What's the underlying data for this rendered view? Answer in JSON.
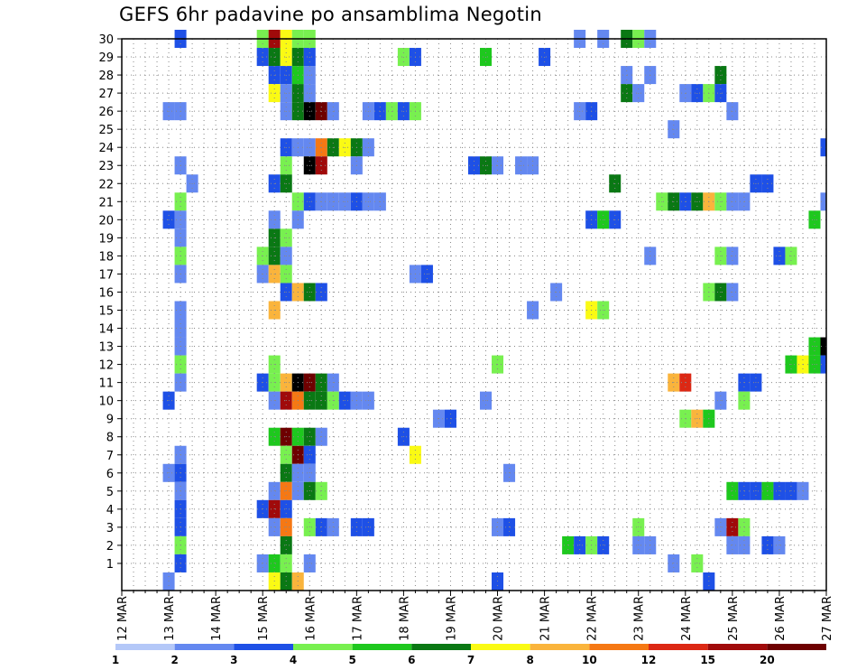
{
  "chart_data": {
    "type": "heatmap",
    "title": "GEFS 6hr padavine po ansamblima Negotin",
    "xlabel": "",
    "ylabel": "",
    "x_ticks": [
      "12 MAR",
      "13 MAR",
      "14 MAR",
      "15 MAR",
      "16 MAR",
      "17 MAR",
      "18 MAR",
      "19 MAR",
      "20 MAR",
      "21 MAR",
      "22 MAR",
      "23 MAR",
      "24 MAR",
      "25 MAR",
      "26 MAR",
      "27 MAR"
    ],
    "x_range_days": [
      12,
      27
    ],
    "time_step_hours": 6,
    "y_ticks": [
      "1",
      "2",
      "3",
      "4",
      "5",
      "6",
      "7",
      "8",
      "9",
      "10",
      "11",
      "12",
      "13",
      "14",
      "15",
      "16",
      "17",
      "18",
      "19",
      "20",
      "21",
      "22",
      "23",
      "24",
      "25",
      "26",
      "27",
      "28",
      "29",
      "30"
    ],
    "ensemble_members": 30,
    "grid": true,
    "colorbar": {
      "labels": [
        "1",
        "2",
        "3",
        "4",
        "5",
        "6",
        "7",
        "8",
        "10",
        "12",
        "15",
        "20"
      ],
      "colors": [
        "#b4c8f8",
        "#6488f0",
        "#1e50e6",
        "#78f050",
        "#1ec81e",
        "#0a7814",
        "#fafa14",
        "#fab43c",
        "#f57814",
        "#dc2814",
        "#a00a0a",
        "#6e0000"
      ]
    },
    "cells": [
      [
        30,
        13.25,
        2
      ],
      [
        30,
        15.0,
        3
      ],
      [
        30,
        15.25,
        10
      ],
      [
        30,
        15.5,
        6
      ],
      [
        30,
        15.75,
        3
      ],
      [
        30,
        16.0,
        3
      ],
      [
        30,
        21.75,
        1
      ],
      [
        30,
        22.25,
        1
      ],
      [
        30,
        22.75,
        5
      ],
      [
        30,
        23.0,
        3
      ],
      [
        30,
        23.25,
        1
      ],
      [
        29,
        15.0,
        2
      ],
      [
        29,
        15.25,
        5
      ],
      [
        29,
        15.5,
        6
      ],
      [
        29,
        15.75,
        5
      ],
      [
        29,
        16.0,
        2
      ],
      [
        29,
        18.0,
        3
      ],
      [
        29,
        18.25,
        2
      ],
      [
        29,
        19.75,
        4
      ],
      [
        29,
        21.0,
        2
      ],
      [
        28,
        15.25,
        2
      ],
      [
        28,
        15.5,
        2
      ],
      [
        28,
        15.75,
        4
      ],
      [
        28,
        16.0,
        1
      ],
      [
        28,
        22.75,
        1
      ],
      [
        28,
        23.25,
        1
      ],
      [
        28,
        24.75,
        5
      ],
      [
        27,
        15.25,
        6
      ],
      [
        27,
        15.5,
        1
      ],
      [
        27,
        15.75,
        5
      ],
      [
        27,
        16.0,
        1
      ],
      [
        27,
        22.75,
        5
      ],
      [
        27,
        23.0,
        1
      ],
      [
        27,
        24.0,
        1
      ],
      [
        27,
        24.25,
        2
      ],
      [
        27,
        24.5,
        3
      ],
      [
        27,
        24.75,
        2
      ],
      [
        26,
        13.0,
        1
      ],
      [
        26,
        13.25,
        1
      ],
      [
        26,
        15.5,
        1
      ],
      [
        26,
        15.75,
        5
      ],
      [
        26,
        16.0,
        12
      ],
      [
        26,
        16.25,
        11
      ],
      [
        26,
        16.5,
        1
      ],
      [
        26,
        17.25,
        1
      ],
      [
        26,
        17.5,
        2
      ],
      [
        26,
        17.75,
        3
      ],
      [
        26,
        18.0,
        2
      ],
      [
        26,
        18.25,
        3
      ],
      [
        26,
        21.75,
        1
      ],
      [
        26,
        22.0,
        2
      ],
      [
        26,
        25.0,
        1
      ],
      [
        25,
        23.75,
        1
      ],
      [
        24,
        15.5,
        2
      ],
      [
        24,
        15.75,
        1
      ],
      [
        24,
        16.0,
        1
      ],
      [
        24,
        16.25,
        8
      ],
      [
        24,
        16.5,
        5
      ],
      [
        24,
        16.75,
        6
      ],
      [
        24,
        17.0,
        5
      ],
      [
        24,
        17.25,
        1
      ],
      [
        24,
        27.0,
        2
      ],
      [
        23,
        13.25,
        1
      ],
      [
        23,
        15.5,
        3
      ],
      [
        23,
        16.0,
        12
      ],
      [
        23,
        16.25,
        10
      ],
      [
        23,
        17.0,
        1
      ],
      [
        23,
        19.5,
        2
      ],
      [
        23,
        19.75,
        5
      ],
      [
        23,
        20.0,
        1
      ],
      [
        23,
        20.5,
        1
      ],
      [
        23,
        20.75,
        1
      ],
      [
        22,
        13.5,
        1
      ],
      [
        22,
        15.25,
        2
      ],
      [
        22,
        15.5,
        5
      ],
      [
        22,
        22.5,
        5
      ],
      [
        22,
        25.5,
        2
      ],
      [
        22,
        25.75,
        2
      ],
      [
        21,
        13.25,
        3
      ],
      [
        21,
        15.75,
        3
      ],
      [
        21,
        16.0,
        2
      ],
      [
        21,
        16.25,
        1
      ],
      [
        21,
        16.5,
        1
      ],
      [
        21,
        16.75,
        1
      ],
      [
        21,
        17.0,
        2
      ],
      [
        21,
        17.25,
        1
      ],
      [
        21,
        17.5,
        1
      ],
      [
        21,
        23.5,
        3
      ],
      [
        21,
        23.75,
        5
      ],
      [
        21,
        24.0,
        2
      ],
      [
        21,
        24.25,
        5
      ],
      [
        21,
        24.5,
        7
      ],
      [
        21,
        24.75,
        3
      ],
      [
        21,
        25.0,
        1
      ],
      [
        21,
        25.25,
        1
      ],
      [
        21,
        27.0,
        1
      ],
      [
        20,
        13.0,
        2
      ],
      [
        20,
        13.25,
        1
      ],
      [
        20,
        15.25,
        1
      ],
      [
        20,
        15.75,
        1
      ],
      [
        20,
        22.0,
        2
      ],
      [
        20,
        22.25,
        4
      ],
      [
        20,
        22.5,
        2
      ],
      [
        20,
        26.75,
        4
      ],
      [
        19,
        13.25,
        1
      ],
      [
        19,
        15.25,
        5
      ],
      [
        19,
        15.5,
        3
      ],
      [
        18,
        13.25,
        3
      ],
      [
        18,
        15.0,
        3
      ],
      [
        18,
        15.25,
        5
      ],
      [
        18,
        15.5,
        1
      ],
      [
        18,
        23.25,
        1
      ],
      [
        18,
        24.75,
        3
      ],
      [
        18,
        25.0,
        1
      ],
      [
        18,
        26.0,
        2
      ],
      [
        18,
        26.25,
        3
      ],
      [
        17,
        13.25,
        1
      ],
      [
        17,
        15.0,
        1
      ],
      [
        17,
        15.25,
        7
      ],
      [
        17,
        15.5,
        3
      ],
      [
        17,
        18.25,
        1
      ],
      [
        17,
        18.5,
        2
      ],
      [
        16,
        15.5,
        2
      ],
      [
        16,
        15.75,
        7
      ],
      [
        16,
        16.0,
        5
      ],
      [
        16,
        16.25,
        2
      ],
      [
        16,
        21.25,
        1
      ],
      [
        16,
        24.5,
        3
      ],
      [
        16,
        24.75,
        5
      ],
      [
        16,
        25.0,
        1
      ],
      [
        15,
        13.25,
        1
      ],
      [
        15,
        15.25,
        7
      ],
      [
        15,
        20.75,
        1
      ],
      [
        15,
        22.0,
        6
      ],
      [
        15,
        22.25,
        3
      ],
      [
        14,
        13.25,
        1
      ],
      [
        13,
        13.25,
        1
      ],
      [
        13,
        26.75,
        4
      ],
      [
        13,
        27.0,
        12
      ],
      [
        12,
        13.25,
        3
      ],
      [
        12,
        15.25,
        3
      ],
      [
        12,
        20.0,
        3
      ],
      [
        12,
        26.25,
        4
      ],
      [
        12,
        26.5,
        6
      ],
      [
        12,
        26.75,
        4
      ],
      [
        12,
        27.0,
        2
      ],
      [
        11,
        13.25,
        1
      ],
      [
        11,
        15.0,
        2
      ],
      [
        11,
        15.25,
        3
      ],
      [
        11,
        15.5,
        7
      ],
      [
        11,
        15.75,
        12
      ],
      [
        11,
        16.0,
        11
      ],
      [
        11,
        16.25,
        5
      ],
      [
        11,
        16.5,
        1
      ],
      [
        11,
        23.75,
        7
      ],
      [
        11,
        24.0,
        9
      ],
      [
        11,
        25.25,
        2
      ],
      [
        11,
        25.5,
        2
      ],
      [
        10,
        13.0,
        2
      ],
      [
        10,
        15.25,
        1
      ],
      [
        10,
        15.5,
        10
      ],
      [
        10,
        15.75,
        8
      ],
      [
        10,
        16.0,
        5
      ],
      [
        10,
        16.25,
        5
      ],
      [
        10,
        16.5,
        3
      ],
      [
        10,
        16.75,
        2
      ],
      [
        10,
        17.0,
        1
      ],
      [
        10,
        17.25,
        1
      ],
      [
        10,
        19.75,
        1
      ],
      [
        10,
        24.75,
        1
      ],
      [
        10,
        25.25,
        3
      ],
      [
        9,
        18.75,
        1
      ],
      [
        9,
        19.0,
        2
      ],
      [
        9,
        24.0,
        3
      ],
      [
        9,
        24.25,
        7
      ],
      [
        9,
        24.5,
        4
      ],
      [
        8,
        15.25,
        4
      ],
      [
        8,
        15.5,
        11
      ],
      [
        8,
        15.75,
        4
      ],
      [
        8,
        16.0,
        5
      ],
      [
        8,
        16.25,
        1
      ],
      [
        8,
        18.0,
        2
      ],
      [
        7,
        13.25,
        1
      ],
      [
        7,
        15.5,
        3
      ],
      [
        7,
        15.75,
        11
      ],
      [
        7,
        16.0,
        2
      ],
      [
        7,
        18.25,
        6
      ],
      [
        6,
        13.0,
        1
      ],
      [
        6,
        13.25,
        2
      ],
      [
        6,
        15.5,
        5
      ],
      [
        6,
        15.75,
        1
      ],
      [
        6,
        16.0,
        1
      ],
      [
        6,
        20.25,
        1
      ],
      [
        5,
        13.25,
        1
      ],
      [
        5,
        15.25,
        1
      ],
      [
        5,
        15.5,
        8
      ],
      [
        5,
        15.75,
        1
      ],
      [
        5,
        16.0,
        5
      ],
      [
        5,
        16.25,
        3
      ],
      [
        5,
        25.0,
        4
      ],
      [
        5,
        25.25,
        2
      ],
      [
        5,
        25.5,
        2
      ],
      [
        5,
        25.75,
        4
      ],
      [
        5,
        26.0,
        2
      ],
      [
        5,
        26.25,
        2
      ],
      [
        5,
        26.5,
        1
      ],
      [
        4,
        13.25,
        2
      ],
      [
        4,
        15.0,
        2
      ],
      [
        4,
        15.25,
        10
      ],
      [
        4,
        15.5,
        2
      ],
      [
        3,
        13.25,
        2
      ],
      [
        3,
        15.25,
        1
      ],
      [
        3,
        15.5,
        8
      ],
      [
        3,
        16.0,
        3
      ],
      [
        3,
        16.25,
        2
      ],
      [
        3,
        16.5,
        1
      ],
      [
        3,
        17.0,
        2
      ],
      [
        3,
        17.25,
        2
      ],
      [
        3,
        20.0,
        1
      ],
      [
        3,
        20.25,
        2
      ],
      [
        3,
        23.0,
        3
      ],
      [
        3,
        24.75,
        1
      ],
      [
        3,
        25.0,
        10
      ],
      [
        3,
        25.25,
        3
      ],
      [
        2,
        13.25,
        3
      ],
      [
        2,
        15.5,
        5
      ],
      [
        2,
        21.5,
        4
      ],
      [
        2,
        21.75,
        2
      ],
      [
        2,
        22.0,
        3
      ],
      [
        2,
        22.25,
        2
      ],
      [
        2,
        23.0,
        1
      ],
      [
        2,
        23.25,
        1
      ],
      [
        2,
        25.0,
        1
      ],
      [
        2,
        25.25,
        1
      ],
      [
        2,
        25.75,
        2
      ],
      [
        2,
        26.0,
        1
      ],
      [
        1,
        13.25,
        2
      ],
      [
        1,
        15.0,
        1
      ],
      [
        1,
        15.25,
        4
      ],
      [
        1,
        15.5,
        3
      ],
      [
        1,
        16.0,
        1
      ],
      [
        1,
        23.75,
        1
      ],
      [
        1,
        24.25,
        3
      ],
      [
        0,
        13.0,
        1
      ],
      [
        0,
        15.25,
        6
      ],
      [
        0,
        15.5,
        5
      ],
      [
        0,
        15.75,
        7
      ],
      [
        0,
        20.0,
        2
      ],
      [
        0,
        24.5,
        2
      ]
    ]
  }
}
